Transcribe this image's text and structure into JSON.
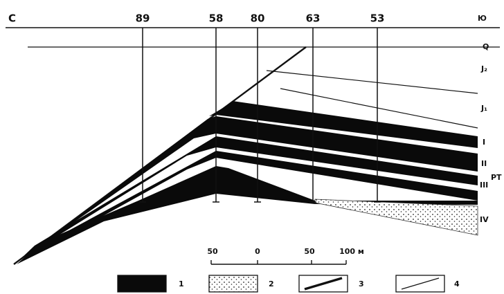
{
  "header": {
    "west": "С",
    "east": "Ю"
  },
  "wells": [
    "89",
    "58",
    "80",
    "63",
    "53"
  ],
  "layers": [
    "Q",
    "J₂",
    "J₁",
    "I",
    "II",
    "PT",
    "III",
    "IV"
  ],
  "scale": [
    "50",
    "0",
    "50",
    "100 м"
  ],
  "legend": [
    "1",
    "2",
    "3",
    "4"
  ]
}
